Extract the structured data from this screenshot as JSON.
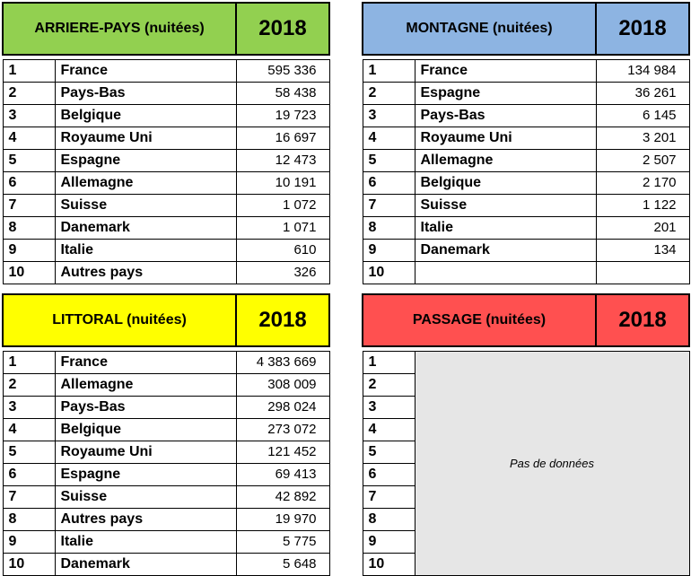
{
  "colors": {
    "arriere_pays": "#92d050",
    "montagne": "#8db4e2",
    "littoral": "#ffff00",
    "passage": "#ff5050"
  },
  "arriere_pays": {
    "title": "ARRIERE-PAYS (nuitées)",
    "year": "2018",
    "rows": [
      {
        "rank": "1",
        "country": "France",
        "value": "595 336"
      },
      {
        "rank": "2",
        "country": "Pays-Bas",
        "value": "58 438"
      },
      {
        "rank": "3",
        "country": "Belgique",
        "value": "19 723"
      },
      {
        "rank": "4",
        "country": "Royaume Uni",
        "value": "16 697"
      },
      {
        "rank": "5",
        "country": "Espagne",
        "value": "12 473"
      },
      {
        "rank": "6",
        "country": "Allemagne",
        "value": "10 191"
      },
      {
        "rank": "7",
        "country": "Suisse",
        "value": "1 072"
      },
      {
        "rank": "8",
        "country": "Danemark",
        "value": "1 071"
      },
      {
        "rank": "9",
        "country": "Italie",
        "value": "610"
      },
      {
        "rank": "10",
        "country": "Autres pays",
        "value": "326"
      }
    ]
  },
  "montagne": {
    "title": "MONTAGNE (nuitées)",
    "year": "2018",
    "rows": [
      {
        "rank": "1",
        "country": "France",
        "value": "134 984"
      },
      {
        "rank": "2",
        "country": "Espagne",
        "value": "36 261"
      },
      {
        "rank": "3",
        "country": "Pays-Bas",
        "value": "6 145"
      },
      {
        "rank": "4",
        "country": "Royaume Uni",
        "value": "3 201"
      },
      {
        "rank": "5",
        "country": "Allemagne",
        "value": "2 507"
      },
      {
        "rank": "6",
        "country": "Belgique",
        "value": "2 170"
      },
      {
        "rank": "7",
        "country": "Suisse",
        "value": "1 122"
      },
      {
        "rank": "8",
        "country": "Italie",
        "value": "201"
      },
      {
        "rank": "9",
        "country": "Danemark",
        "value": "134"
      },
      {
        "rank": "10",
        "country": "",
        "value": ""
      }
    ]
  },
  "littoral": {
    "title": "LITTORAL (nuitées)",
    "year": "2018",
    "rows": [
      {
        "rank": "1",
        "country": "France",
        "value": "4 383 669"
      },
      {
        "rank": "2",
        "country": "Allemagne",
        "value": "308 009"
      },
      {
        "rank": "3",
        "country": "Pays-Bas",
        "value": "298 024"
      },
      {
        "rank": "4",
        "country": "Belgique",
        "value": "273 072"
      },
      {
        "rank": "5",
        "country": "Royaume Uni",
        "value": "121 452"
      },
      {
        "rank": "6",
        "country": "Espagne",
        "value": "69 413"
      },
      {
        "rank": "7",
        "country": "Suisse",
        "value": "42 892"
      },
      {
        "rank": "8",
        "country": "Autres pays",
        "value": "19 970"
      },
      {
        "rank": "9",
        "country": "Italie",
        "value": "5 775"
      },
      {
        "rank": "10",
        "country": "Danemark",
        "value": "5 648"
      }
    ]
  },
  "passage": {
    "title": "PASSAGE (nuitées)",
    "year": "2018",
    "no_data": "Pas de données",
    "ranks": [
      "1",
      "2",
      "3",
      "4",
      "5",
      "6",
      "7",
      "8",
      "9",
      "10"
    ]
  }
}
